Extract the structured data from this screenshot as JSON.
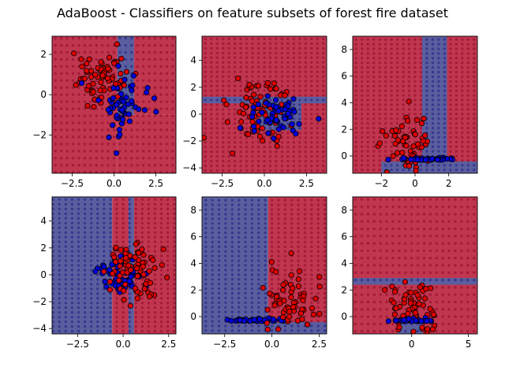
{
  "figure": {
    "title": "AdaBoost - Classifiers on feature subsets of forest fire dataset"
  },
  "colors": {
    "class_a": "#e00000",
    "class_b": "#0000dd",
    "region_a": "#c0364f",
    "region_b": "#5b5e9e",
    "grid_a": "#9e1535",
    "grid_b": "#2e2f8c"
  },
  "chart_data": [
    {
      "type": "scatter",
      "xlim": [
        -3.7,
        3.7
      ],
      "ylim": [
        -3.9,
        2.9
      ],
      "xticks": [
        -2.5,
        0.0,
        2.5
      ],
      "xtick_labels": [
        "−2.5",
        "0.0",
        "2.5"
      ],
      "yticks": [
        -2,
        0,
        2
      ],
      "ytick_labels": [
        "−2",
        "0",
        "2"
      ],
      "grid_dot_spacing": 0.35,
      "regions": [
        {
          "x": [
            -3.7,
            0.2
          ],
          "y": [
            -3.9,
            2.9
          ],
          "class": "a"
        },
        {
          "x": [
            0.2,
            3.7
          ],
          "y": [
            -3.9,
            -1.0
          ],
          "class": "a"
        },
        {
          "x": [
            -3.7,
            0.2
          ],
          "y": [
            0.7,
            2.9
          ],
          "class": "a"
        },
        {
          "x": [
            0.2,
            1.2
          ],
          "y": [
            -1.0,
            2.9
          ],
          "class": "b"
        },
        {
          "x": [
            1.2,
            3.7
          ],
          "y": [
            -1.0,
            2.9
          ],
          "class": "a"
        }
      ],
      "clusters": [
        {
          "class": "a",
          "n": 75,
          "cx": -0.7,
          "cy": 1.0,
          "sx": 0.75,
          "sy": 0.7
        },
        {
          "class": "b",
          "n": 55,
          "cx": 0.5,
          "cy": -0.6,
          "sx": 0.7,
          "sy": 0.9
        }
      ]
    },
    {
      "type": "scatter",
      "xlim": [
        -3.7,
        3.7
      ],
      "ylim": [
        -4.4,
        5.8
      ],
      "xticks": [
        -2.5,
        0.0,
        2.5
      ],
      "xtick_labels": [
        "−2.5",
        "0.0",
        "2.5"
      ],
      "yticks": [
        -4,
        -2,
        0,
        2,
        4
      ],
      "ytick_labels": [
        "−4",
        "−2",
        "0",
        "2",
        "4"
      ],
      "grid_dot_spacing": 0.35,
      "regions": [
        {
          "x": [
            -3.7,
            3.7
          ],
          "y": [
            -4.4,
            5.8
          ],
          "class": "a"
        },
        {
          "x": [
            -0.3,
            2.2
          ],
          "y": [
            -1.2,
            1.2
          ],
          "class": "b"
        },
        {
          "x": [
            -3.7,
            3.7
          ],
          "y": [
            0.8,
            1.3
          ],
          "class": "b"
        }
      ],
      "clusters": [
        {
          "class": "a",
          "n": 80,
          "cx": -0.2,
          "cy": 0.4,
          "sx": 1.0,
          "sy": 1.3
        },
        {
          "class": "b",
          "n": 60,
          "cx": 0.6,
          "cy": -0.1,
          "sx": 0.8,
          "sy": 0.6
        }
      ]
    },
    {
      "type": "scatter",
      "xlim": [
        -3.7,
        3.7
      ],
      "ylim": [
        -1.3,
        9.0
      ],
      "xticks": [
        -2,
        0,
        2
      ],
      "xtick_labels": [
        "−2",
        "0",
        "2"
      ],
      "yticks": [
        0,
        2,
        4,
        6,
        8
      ],
      "ytick_labels": [
        "0",
        "2",
        "4",
        "6",
        "8"
      ],
      "grid_dot_spacing": 0.35,
      "regions": [
        {
          "x": [
            -3.7,
            3.7
          ],
          "y": [
            -1.3,
            9.0
          ],
          "class": "a"
        },
        {
          "x": [
            0.4,
            1.9
          ],
          "y": [
            -1.3,
            9.0
          ],
          "class": "b"
        },
        {
          "x": [
            -3.7,
            3.7
          ],
          "y": [
            -1.3,
            -0.4
          ],
          "class": "b"
        },
        {
          "x": [
            -3.7,
            -2.0
          ],
          "y": [
            -1.3,
            9.0
          ],
          "class": "a"
        }
      ],
      "clusters": [
        {
          "class": "a",
          "n": 60,
          "cx": -0.6,
          "cy": 0.9,
          "sx": 0.9,
          "sy": 1.2
        },
        {
          "class": "b",
          "n": 45,
          "cx": 0.4,
          "cy": -0.3,
          "sx": 1.1,
          "sy": 0.08
        }
      ]
    },
    {
      "type": "scatter",
      "xlim": [
        -3.9,
        2.9
      ],
      "ylim": [
        -4.4,
        5.8
      ],
      "xticks": [
        -2.5,
        0.0,
        2.5
      ],
      "xtick_labels": [
        "−2.5",
        "0.0",
        "2.5"
      ],
      "yticks": [
        -4,
        -2,
        0,
        2,
        4
      ],
      "ytick_labels": [
        "−4",
        "−2",
        "0",
        "2",
        "4"
      ],
      "grid_dot_spacing": 0.35,
      "regions": [
        {
          "x": [
            -3.9,
            -0.6
          ],
          "y": [
            -4.4,
            5.8
          ],
          "class": "b"
        },
        {
          "x": [
            -0.6,
            0.3
          ],
          "y": [
            -4.4,
            5.8
          ],
          "class": "a"
        },
        {
          "x": [
            0.3,
            0.6
          ],
          "y": [
            -4.4,
            5.8
          ],
          "class": "b"
        },
        {
          "x": [
            0.6,
            2.9
          ],
          "y": [
            -4.4,
            5.8
          ],
          "class": "a"
        }
      ],
      "clusters": [
        {
          "class": "b",
          "n": 60,
          "cx": -0.2,
          "cy": 0.0,
          "sx": 0.7,
          "sy": 0.6
        },
        {
          "class": "a",
          "n": 80,
          "cx": 0.5,
          "cy": 0.3,
          "sx": 0.8,
          "sy": 1.2
        }
      ]
    },
    {
      "type": "scatter",
      "xlim": [
        -3.7,
        2.9
      ],
      "ylim": [
        -1.3,
        9.0
      ],
      "xticks": [
        -2.5,
        0.0,
        2.5
      ],
      "xtick_labels": [
        "−2.5",
        "0.0",
        "2.5"
      ],
      "yticks": [
        0,
        2,
        4,
        6,
        8
      ],
      "ytick_labels": [
        "0",
        "2",
        "4",
        "6",
        "8"
      ],
      "grid_dot_spacing": 0.35,
      "regions": [
        {
          "x": [
            -3.7,
            -0.2
          ],
          "y": [
            -1.3,
            9.0
          ],
          "class": "b"
        },
        {
          "x": [
            -0.2,
            2.9
          ],
          "y": [
            -1.3,
            9.0
          ],
          "class": "a"
        },
        {
          "x": [
            -3.7,
            2.9
          ],
          "y": [
            -1.3,
            -0.4
          ],
          "class": "b"
        }
      ],
      "clusters": [
        {
          "class": "b",
          "n": 50,
          "cx": -0.9,
          "cy": -0.35,
          "sx": 0.9,
          "sy": 0.1
        },
        {
          "class": "a",
          "n": 70,
          "cx": 0.8,
          "cy": 0.8,
          "sx": 0.8,
          "sy": 1.6
        }
      ]
    },
    {
      "type": "scatter",
      "xlim": [
        -5.2,
        5.8
      ],
      "ylim": [
        -1.3,
        9.0
      ],
      "xticks": [
        0,
        5
      ],
      "xtick_labels": [
        "0",
        "5"
      ],
      "yticks": [
        0,
        2,
        4,
        6,
        8
      ],
      "ytick_labels": [
        "0",
        "2",
        "4",
        "6",
        "8"
      ],
      "grid_dot_spacing": 0.55,
      "regions": [
        {
          "x": [
            -5.2,
            5.8
          ],
          "y": [
            -1.3,
            9.0
          ],
          "class": "a"
        },
        {
          "x": [
            -5.2,
            5.8
          ],
          "y": [
            2.4,
            2.9
          ],
          "class": "b"
        },
        {
          "x": [
            -1.2,
            1.0
          ],
          "y": [
            -1.3,
            -0.4
          ],
          "class": "b"
        }
      ],
      "clusters": [
        {
          "class": "a",
          "n": 65,
          "cx": 0.2,
          "cy": 0.7,
          "sx": 1.2,
          "sy": 1.2
        },
        {
          "class": "b",
          "n": 40,
          "cx": 0.0,
          "cy": -0.35,
          "sx": 1.0,
          "sy": 0.08
        }
      ]
    }
  ]
}
